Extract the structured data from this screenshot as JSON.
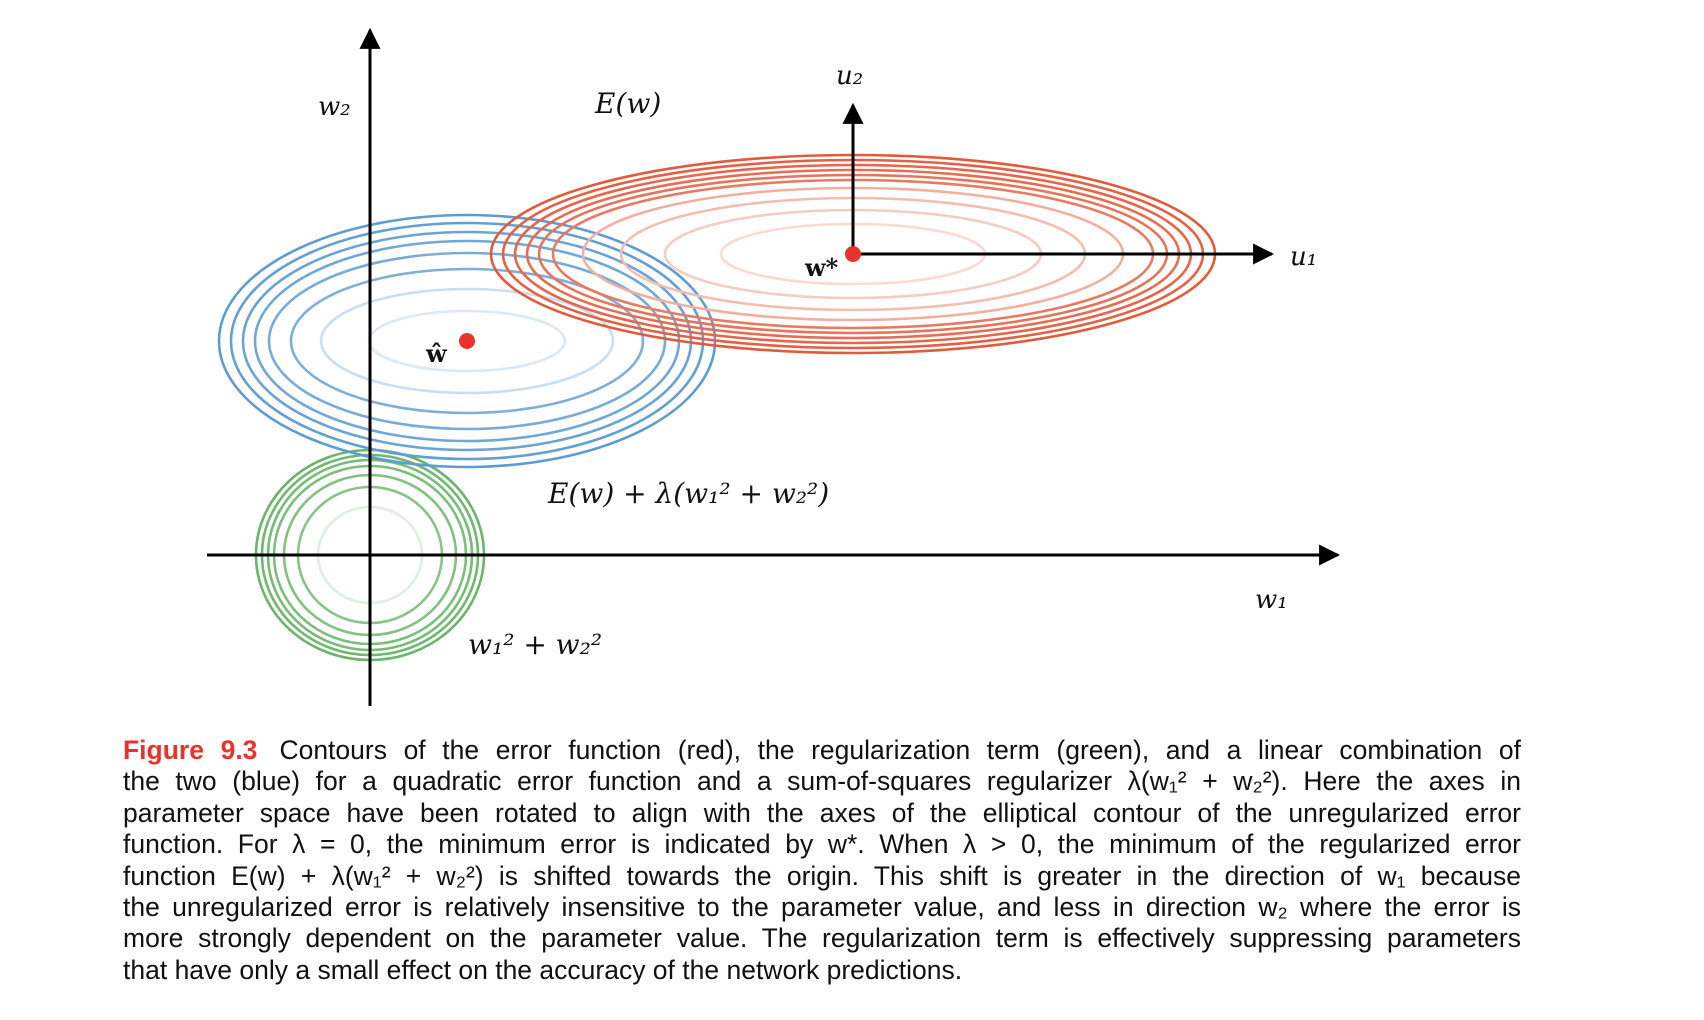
{
  "labels": {
    "w2_axis": "w₂",
    "w1_axis": "w₁",
    "u2_axis": "u₂",
    "u1_axis": "u₁",
    "error_function": "E(w)",
    "combined": "E(w) + λ(w₁² + w₂²)",
    "regularizer": "w₁² + w₂²",
    "w_star": "w*",
    "w_hat": "ŵ"
  },
  "colors": {
    "error_contours": "#e05a3c",
    "combined_contours": "#5e9bd0",
    "regularizer_contours": "#6ab56a",
    "minimum_points": "#e8332a",
    "axes": "#000000"
  },
  "caption": {
    "figure_label": "Figure 9.3",
    "lines": [
      "Contours of the error function (red), the regularization term (green), and a linear combination of",
      "the two (blue) for a quadratic error function and a sum-of-squares regularizer λ(w₁² + w₂²).  Here the axes in",
      "parameter space have been rotated to align with the axes of the elliptical contour of the unregularized error",
      "function. For λ = 0, the minimum error is indicated by w*. When λ > 0, the minimum of the regularized error",
      "function E(w) + λ(w₁² + w₂²) is shifted towards the origin. This shift is greater in the direction of w₁ because",
      "the unregularized error is relatively insensitive to the parameter value, and less in direction w₂ where the error is",
      "more strongly dependent on the parameter value. The regularization term is effectively suppressing parameters",
      "that have only a small effect on the accuracy of the network predictions."
    ]
  }
}
